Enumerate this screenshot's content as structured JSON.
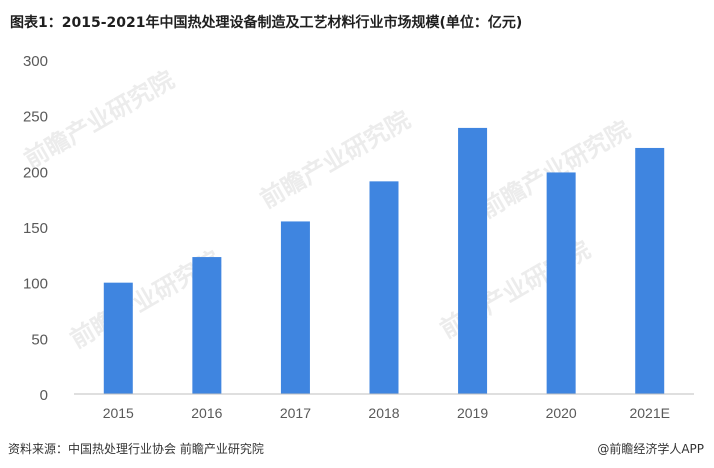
{
  "title": "图表1：2015-2021年中国热处理设备制造及工艺材料行业市场规模(单位：亿元)",
  "footer": {
    "source": "资料来源：中国热处理行业协会 前瞻产业研究院",
    "brand": "@前瞻经济学人APP"
  },
  "watermark": "前瞻产业研究院",
  "colors": {
    "bar": "#3f85e0",
    "axis": "#bfbfbf",
    "text": "#595959"
  },
  "chart_data": {
    "type": "bar",
    "categories": [
      "2015",
      "2016",
      "2017",
      "2018",
      "2019",
      "2020",
      "2021E"
    ],
    "values": [
      100,
      123,
      155,
      191,
      239,
      199,
      221
    ],
    "ylim": [
      0,
      300
    ],
    "yticks": [
      0,
      50,
      100,
      150,
      200,
      250,
      300
    ],
    "grid": false,
    "legend": "none"
  }
}
